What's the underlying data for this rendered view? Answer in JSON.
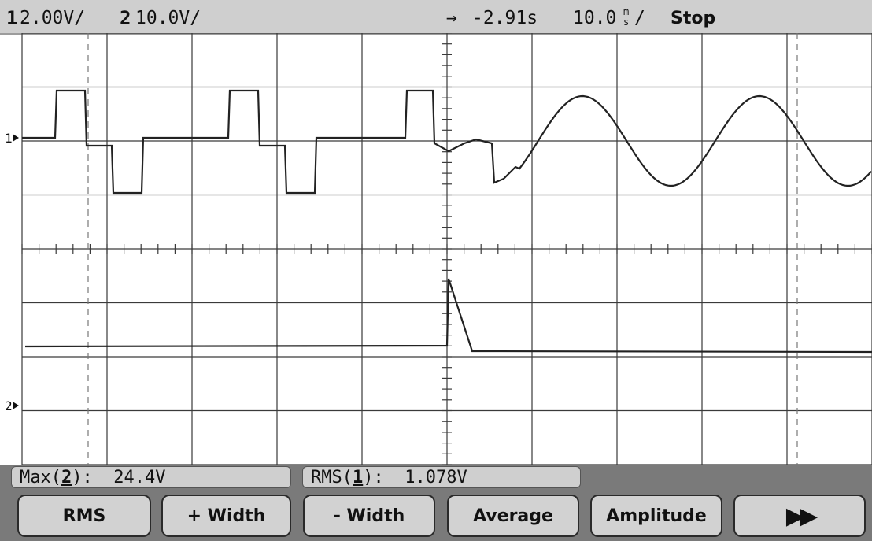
{
  "status": {
    "ch1_number": "1",
    "ch1_scale": "2.00V/",
    "ch2_number": "2",
    "ch2_scale": "10.0V/",
    "trigger_arrow": "→",
    "time_delay": "-2.91s",
    "time_scale": "10.0",
    "time_unit_top": "m",
    "time_unit_bottom": "s",
    "time_scale_suffix": "/",
    "run_state": "Stop"
  },
  "markers": {
    "ch1": "1",
    "ch2": "2"
  },
  "measurements": [
    {
      "prefix": "Max(",
      "channel": "2",
      "suffix": "):  24.4V"
    },
    {
      "prefix": "RMS(",
      "channel": "1",
      "suffix": "):  1.078V"
    }
  ],
  "softkeys": [
    {
      "label": "RMS"
    },
    {
      "label": "+ Width"
    },
    {
      "label": "- Width"
    },
    {
      "label": "Average"
    },
    {
      "label": "Amplitude"
    },
    {
      "label": "▶▶",
      "icon": "fast-forward-icon"
    }
  ],
  "colors": {
    "background": "#ffffff",
    "grid": "#3a3a3a",
    "trace": "#222222",
    "softkey_bar": "#7a7a7a",
    "softkey_face": "#d2d2d2"
  }
}
